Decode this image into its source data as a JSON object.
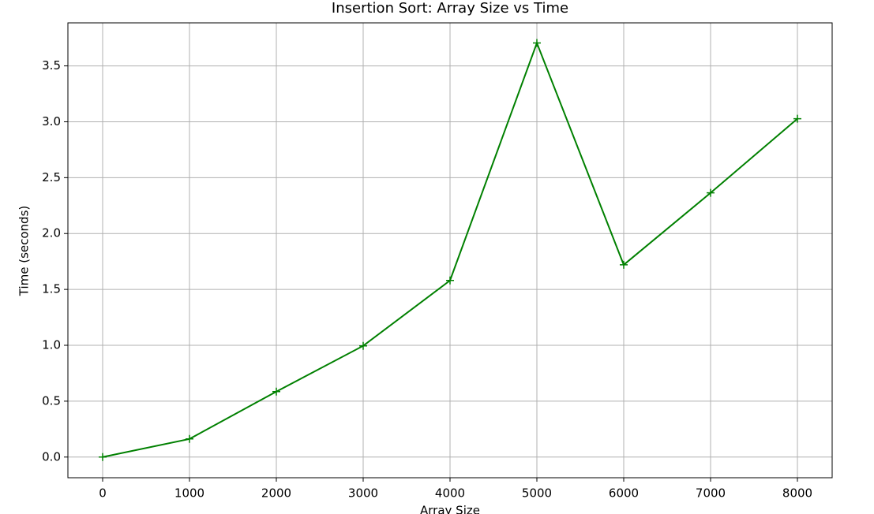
{
  "chart_data": {
    "type": "line",
    "title": "Insertion Sort: Array Size vs Time",
    "xlabel": "Array Size",
    "ylabel": "Time (seconds)",
    "x": [
      0,
      1000,
      2000,
      3000,
      4000,
      5000,
      6000,
      7000,
      8000
    ],
    "series": [
      {
        "name": "Insertion Sort",
        "color": "#008000",
        "values": [
          0.0,
          0.162,
          0.586,
          0.995,
          1.58,
          3.705,
          1.72,
          2.364,
          3.027
        ]
      }
    ],
    "xlim": [
      -400,
      8400
    ],
    "xticks": [
      0,
      1000,
      2000,
      3000,
      4000,
      5000,
      6000,
      7000,
      8000
    ],
    "ylim": [
      -0.185,
      3.885
    ],
    "yticks": [
      {
        "value": 0,
        "label": "0.0"
      },
      0.5,
      {
        "value": 1,
        "label": "1.0"
      },
      1.5,
      {
        "value": 2,
        "label": "2.0"
      },
      2.5,
      {
        "value": 3,
        "label": "3.0"
      },
      3.5
    ],
    "grid": true,
    "marker": "+"
  }
}
